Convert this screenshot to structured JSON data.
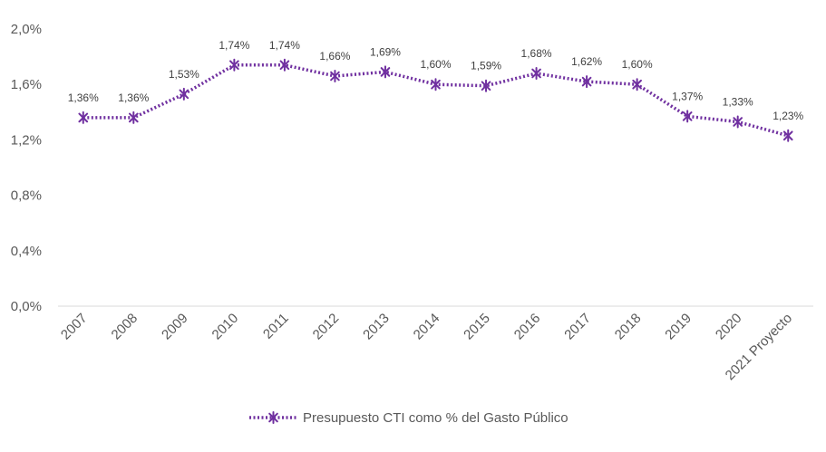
{
  "chart_data": {
    "type": "line",
    "title": "",
    "xlabel": "",
    "ylabel": "",
    "categories": [
      "2007",
      "2008",
      "2009",
      "2010",
      "2011",
      "2012",
      "2013",
      "2014",
      "2015",
      "2016",
      "2017",
      "2018",
      "2019",
      "2020",
      "2021 Proyecto"
    ],
    "series": [
      {
        "name": "Presupuesto CTI como % del Gasto Público",
        "values": [
          1.36,
          1.36,
          1.53,
          1.74,
          1.74,
          1.66,
          1.69,
          1.6,
          1.59,
          1.68,
          1.62,
          1.6,
          1.37,
          1.33,
          1.23
        ],
        "labels": [
          "1,36%",
          "1,36%",
          "1,53%",
          "1,74%",
          "1,74%",
          "1,66%",
          "1,69%",
          "1,60%",
          "1,59%",
          "1,68%",
          "1,62%",
          "1,60%",
          "1,37%",
          "1,33%",
          "1,23%"
        ],
        "color": "#7030a0",
        "line_style": "dotted",
        "marker": "star"
      }
    ],
    "ylim": [
      0,
      2.0
    ],
    "yticks": [
      0,
      0.4,
      0.8,
      1.2,
      1.6,
      2.0
    ],
    "ytick_labels": [
      "0,0%",
      "0,4%",
      "0,8%",
      "1,2%",
      "1,6%",
      "2,0%"
    ],
    "grid": false,
    "legend": "bottom-center",
    "axis_color": "#d9d9d9"
  }
}
